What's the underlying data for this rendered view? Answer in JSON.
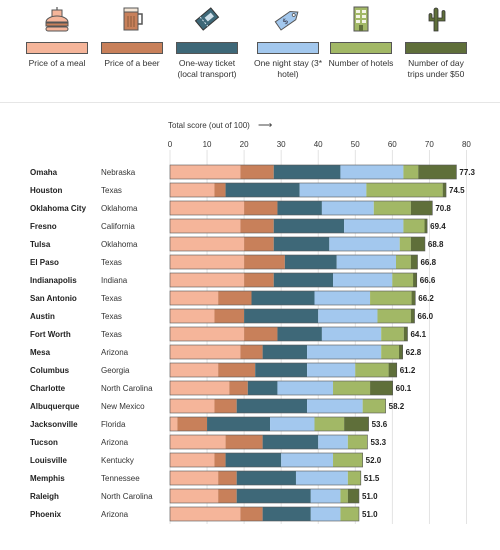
{
  "legend": [
    {
      "label": "Price of a meal",
      "icon": "burger-icon",
      "color": "#f5b59a"
    },
    {
      "label": "Price of a beer",
      "icon": "beer-mug-icon",
      "color": "#c8805a"
    },
    {
      "label": "One-way ticket (local transport)",
      "icon": "ticket-icon",
      "color": "#3e6878"
    },
    {
      "label": "One night stay (3* hotel)",
      "icon": "price-tag-icon",
      "color": "#a3c8ee"
    },
    {
      "label": "Number of hotels",
      "icon": "hotel-building-icon",
      "color": "#a2b866"
    },
    {
      "label": "Number of day trips under $50",
      "icon": "cactus-icon",
      "color": "#5f6f3a"
    }
  ],
  "chart_data": {
    "type": "bar",
    "stacked": true,
    "orientation": "horizontal",
    "xlabel": "Total score (out of 100)",
    "xlim": [
      0,
      80
    ],
    "xticks": [
      0,
      10,
      20,
      30,
      40,
      50,
      60,
      70,
      80
    ],
    "grid": true,
    "categories": [
      "Omaha",
      "Houston",
      "Oklahoma City",
      "Fresno",
      "Tulsa",
      "El Paso",
      "Indianapolis",
      "San Antonio",
      "Austin",
      "Fort Worth",
      "Mesa",
      "Columbus",
      "Charlotte",
      "Albuquerque",
      "Jacksonville",
      "Tucson",
      "Louisville",
      "Memphis",
      "Raleigh",
      "Phoenix"
    ],
    "states": [
      "Nebraska",
      "Texas",
      "Oklahoma",
      "California",
      "Oklahoma",
      "Texas",
      "Indiana",
      "Texas",
      "Texas",
      "Texas",
      "Arizona",
      "Georgia",
      "North Carolina",
      "New Mexico",
      "Florida",
      "Arizona",
      "Kentucky",
      "Tennessee",
      "North Carolina",
      "Arizona"
    ],
    "totals": [
      "77.3",
      "74.5",
      "70.8",
      "69.4",
      "68.8",
      "66.8",
      "66.6",
      "66.2",
      "66.0",
      "64.1",
      "62.8",
      "61.2",
      "60.1",
      "58.2",
      "53.6",
      "53.3",
      "52.0",
      "51.5",
      "51.0",
      "51.0"
    ],
    "series": [
      {
        "name": "Price of a meal",
        "color": "#f5b59a",
        "values": [
          19,
          12,
          20,
          19,
          20,
          20,
          20,
          13,
          12,
          20,
          19,
          13,
          16,
          12,
          2,
          15,
          12,
          13,
          13,
          19
        ]
      },
      {
        "name": "Price of a beer",
        "color": "#c8805a",
        "values": [
          9,
          3,
          9,
          9,
          8,
          11,
          8,
          9,
          8,
          9,
          6,
          10,
          5,
          6,
          8,
          10,
          3,
          5,
          5,
          6
        ]
      },
      {
        "name": "One-way ticket (local transport)",
        "color": "#3e6878",
        "values": [
          18,
          20,
          12,
          19,
          15,
          14,
          16,
          17,
          20,
          12,
          12,
          14,
          8,
          19,
          17,
          15,
          15,
          16,
          20,
          13
        ]
      },
      {
        "name": "One night stay (3* hotel)",
        "color": "#a3c8ee",
        "values": [
          17,
          18,
          14,
          16,
          19,
          16,
          16,
          15,
          16,
          16,
          20,
          13,
          15,
          15,
          12,
          8,
          14,
          14,
          8,
          8
        ]
      },
      {
        "name": "Number of hotels",
        "color": "#a2b866",
        "values": [
          4,
          20.6,
          10,
          5.7,
          3,
          4,
          5.6,
          11.2,
          9,
          6.1,
          4.8,
          9,
          10,
          6.2,
          8,
          5.3,
          8,
          3.5,
          2,
          5
        ]
      },
      {
        "name": "Number of day trips under $50",
        "color": "#5f6f3a",
        "values": [
          10.3,
          0.9,
          5.8,
          0.7,
          3.8,
          1.8,
          1,
          1,
          1,
          1,
          1,
          2.2,
          6.1,
          0,
          6.6,
          0,
          0,
          0,
          3,
          0
        ]
      }
    ]
  }
}
